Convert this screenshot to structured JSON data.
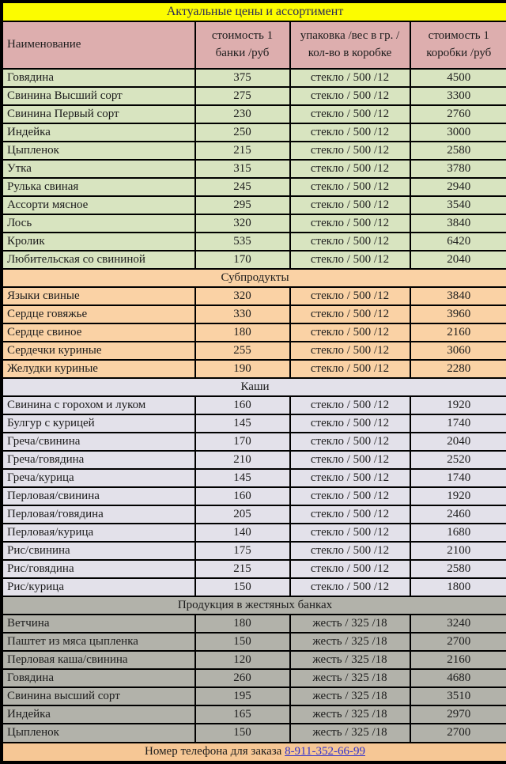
{
  "title": "Актуальные цены и ассортимент",
  "columns": {
    "name": "Наименование",
    "jar_price": "стоимость 1\nбанки /руб",
    "packaging": "упаковка /вес в гр. /\nкол-во в коробке",
    "box_price": "стоимость 1\nкоробки /руб"
  },
  "sections": [
    {
      "header": null,
      "theme": "green",
      "rows": [
        [
          "Говядина",
          "375",
          "стекло / 500 /12",
          "4500"
        ],
        [
          "Свинина Высший сорт",
          "275",
          "стекло / 500 /12",
          "3300"
        ],
        [
          "Свинина Первый сорт",
          "230",
          "стекло / 500 /12",
          "2760"
        ],
        [
          "Индейка",
          "250",
          "стекло / 500 /12",
          "3000"
        ],
        [
          "Цыпленок",
          "215",
          "стекло / 500 /12",
          "2580"
        ],
        [
          "Утка",
          "315",
          "стекло / 500 /12",
          "3780"
        ],
        [
          "Рулька свиная",
          "245",
          "стекло / 500 /12",
          "2940"
        ],
        [
          "Ассорти мясное",
          "295",
          "стекло / 500 /12",
          "3540"
        ],
        [
          "Лось",
          "320",
          "стекло / 500 /12",
          "3840"
        ],
        [
          "Кролик",
          "535",
          "стекло / 500 /12",
          "6420"
        ],
        [
          "Любительская со свининой",
          "170",
          "стекло / 500 /12",
          "2040"
        ]
      ]
    },
    {
      "header": "Субпродукты",
      "theme": "peach",
      "rows": [
        [
          "Языки свиные",
          "320",
          "стекло / 500 /12",
          "3840"
        ],
        [
          "Сердце говяжье",
          "330",
          "стекло / 500 /12",
          "3960"
        ],
        [
          "Сердце свиное",
          "180",
          "стекло / 500 /12",
          "2160"
        ],
        [
          "Сердечки куриные",
          "255",
          "стекло / 500 /12",
          "3060"
        ],
        [
          "Желудки куриные",
          "190",
          "стекло / 500 /12",
          "2280"
        ]
      ]
    },
    {
      "header": "Каши",
      "theme": "lavender",
      "rows": [
        [
          "Свинина с горохом и луком",
          "160",
          "стекло / 500 /12",
          "1920"
        ],
        [
          "Булгур с курицей",
          "145",
          "стекло / 500 /12",
          "1740"
        ],
        [
          "Греча/свинина",
          "170",
          "стекло / 500 /12",
          "2040"
        ],
        [
          "Греча/говядина",
          "210",
          "стекло / 500 /12",
          "2520"
        ],
        [
          "Греча/курица",
          "145",
          "стекло / 500 /12",
          "1740"
        ],
        [
          "Перловая/свинина",
          "160",
          "стекло / 500 /12",
          "1920"
        ],
        [
          "Перловая/говядина",
          "205",
          "стекло / 500 /12",
          "2460"
        ],
        [
          "Перловая/курица",
          "140",
          "стекло / 500 /12",
          "1680"
        ],
        [
          "Рис/свинина",
          "175",
          "стекло / 500 /12",
          "2100"
        ],
        [
          "Рис/говядина",
          "215",
          "стекло / 500 /12",
          "2580"
        ],
        [
          "Рис/курица",
          "150",
          "стекло / 500 /12",
          "1800"
        ]
      ]
    },
    {
      "header": "Продукция в жестяных банках",
      "theme": "gray",
      "rows": [
        [
          "Ветчина",
          "180",
          "жесть / 325 /18",
          "3240"
        ],
        [
          "Паштет из мяса цыпленка",
          "150",
          "жесть / 325 /18",
          "2700"
        ],
        [
          "Перловая каша/свинина",
          "120",
          "жесть / 325 /18",
          "2160"
        ],
        [
          "Говядина",
          "260",
          "жесть / 325 /18",
          "4680"
        ],
        [
          "Свинина высший сорт",
          "195",
          "жесть / 325 /18",
          "3510"
        ],
        [
          "Индейка",
          "165",
          "жесть / 325 /18",
          "2970"
        ],
        [
          "Цыпленок",
          "150",
          "жесть / 325 /18",
          "2700"
        ]
      ]
    }
  ],
  "footer": {
    "text": "Номер телефона для заказа ",
    "phone": "8-911-352-66-99"
  },
  "colors": {
    "title-bg": "#fcfc00",
    "title-text": "#2b2b55",
    "header-bg": "#ddaeae",
    "green": "#d8e4c0",
    "peach": "#fad2a5",
    "lavender": "#e3e1ea",
    "gray": "#b2b2aa",
    "footer-bg": "#f6c795",
    "link": "#3333cc",
    "text": "#1c1c1c",
    "border": "#000000"
  }
}
